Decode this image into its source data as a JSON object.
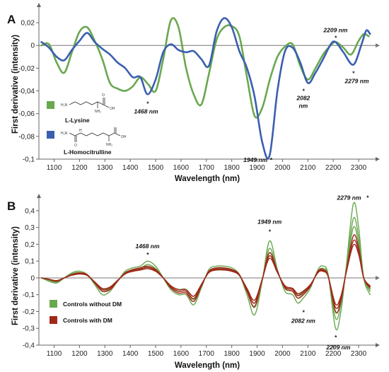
{
  "chart_data": [
    {
      "panel_label": "A",
      "type": "line",
      "xlabel": "Wavelength (nm)",
      "ylabel": "First derivative (intensity)",
      "xlim": [
        1040,
        2350
      ],
      "ylim": [
        -0.1,
        0.03
      ],
      "xticks": [
        1100,
        1200,
        1300,
        1400,
        1500,
        1600,
        1700,
        1800,
        1900,
        2000,
        2100,
        2200,
        2300
      ],
      "yticks": [
        -0.1,
        -0.08,
        -0.06,
        -0.04,
        -0.02,
        0,
        0.02
      ],
      "ytick_labels": [
        "-0,1",
        "-0,08",
        "-0,06",
        "-0,04",
        "-0,02",
        "0",
        "0,02"
      ],
      "series": [
        {
          "name": "L-Lysine",
          "color": "#6aa84f",
          "x": [
            1050,
            1080,
            1110,
            1140,
            1170,
            1200,
            1230,
            1260,
            1290,
            1320,
            1350,
            1380,
            1410,
            1440,
            1470,
            1500,
            1530,
            1560,
            1590,
            1620,
            1650,
            1680,
            1710,
            1740,
            1770,
            1800,
            1830,
            1860,
            1890,
            1920,
            1950,
            1980,
            2010,
            2040,
            2070,
            2100,
            2130,
            2160,
            2190,
            2210,
            2240,
            2270,
            2300,
            2320,
            2340
          ],
          "y": [
            0.0,
            0.001,
            -0.015,
            -0.024,
            -0.006,
            0.012,
            0.016,
            0.004,
            -0.012,
            -0.033,
            -0.038,
            -0.04,
            -0.036,
            -0.028,
            -0.034,
            -0.04,
            -0.012,
            0.022,
            0.016,
            -0.02,
            -0.043,
            -0.052,
            -0.025,
            0.005,
            0.016,
            0.017,
            0.008,
            -0.028,
            -0.062,
            -0.055,
            -0.03,
            -0.01,
            -0.001,
            0.001,
            -0.018,
            -0.03,
            -0.02,
            -0.008,
            0.0,
            0.003,
            -0.002,
            -0.008,
            0.004,
            0.01,
            0.008
          ]
        },
        {
          "name": "L-Homocitrulline",
          "color": "#3a5fb0",
          "x": [
            1050,
            1080,
            1110,
            1140,
            1170,
            1200,
            1230,
            1260,
            1290,
            1320,
            1350,
            1380,
            1410,
            1440,
            1468,
            1500,
            1530,
            1560,
            1590,
            1620,
            1650,
            1680,
            1710,
            1740,
            1770,
            1800,
            1830,
            1860,
            1890,
            1920,
            1949,
            1980,
            2010,
            2040,
            2070,
            2100,
            2130,
            2160,
            2190,
            2209,
            2240,
            2279,
            2310,
            2330,
            2345
          ],
          "y": [
            0.003,
            -0.002,
            -0.01,
            -0.013,
            -0.004,
            0.004,
            0.011,
            0.003,
            -0.003,
            -0.008,
            -0.015,
            -0.02,
            -0.028,
            -0.028,
            -0.043,
            -0.03,
            -0.006,
            0.001,
            -0.004,
            -0.006,
            -0.005,
            -0.012,
            -0.018,
            0.012,
            0.024,
            0.016,
            -0.005,
            -0.02,
            -0.045,
            -0.085,
            -0.097,
            -0.04,
            -0.005,
            -0.002,
            -0.015,
            -0.033,
            -0.024,
            -0.012,
            0.001,
            0.003,
            -0.006,
            -0.017,
            0.0,
            0.013,
            0.01
          ]
        }
      ],
      "annotations": [
        {
          "text": "1468 nm",
          "x": 1468,
          "y": -0.043
        },
        {
          "text": "1949 nm",
          "x": 1949,
          "y": -0.097
        },
        {
          "text": "2082 nm",
          "x": 2082,
          "y": -0.033
        },
        {
          "text": "2209 nm",
          "x": 2209,
          "y": 0.003
        },
        {
          "text": "2279 nm",
          "x": 2279,
          "y": -0.017
        }
      ]
    },
    {
      "panel_label": "B",
      "type": "line",
      "xlabel": "Wavelength (nm)",
      "ylabel": "First derivative (intensity)",
      "xlim": [
        1040,
        2350
      ],
      "ylim": [
        -0.4,
        0.45
      ],
      "xticks": [
        1100,
        1200,
        1300,
        1400,
        1500,
        1600,
        1700,
        1800,
        1900,
        2000,
        2100,
        2200,
        2300
      ],
      "yticks": [
        -0.4,
        -0.3,
        -0.2,
        -0.1,
        0,
        0.1,
        0.2,
        0.3,
        0.4
      ],
      "ytick_labels": [
        "-0,4",
        "-0,3",
        "-0,2",
        "-0,1",
        "0",
        "0,1",
        "0,2",
        "0,3",
        "0,4"
      ],
      "x": [
        1050,
        1080,
        1110,
        1140,
        1170,
        1200,
        1230,
        1260,
        1290,
        1320,
        1350,
        1380,
        1410,
        1440,
        1468,
        1500,
        1530,
        1560,
        1590,
        1620,
        1650,
        1680,
        1710,
        1740,
        1770,
        1800,
        1830,
        1860,
        1890,
        1920,
        1949,
        1980,
        2010,
        2040,
        2060,
        2082,
        2110,
        2140,
        2160,
        2180,
        2209,
        2230,
        2250,
        2279,
        2300,
        2320,
        2345
      ],
      "series": [
        {
          "name": "Controls without DM",
          "color": "#6aa84f",
          "y": [
            0.0,
            -0.02,
            -0.03,
            0.0,
            0.03,
            0.04,
            0.02,
            -0.04,
            -0.1,
            -0.08,
            -0.02,
            0.04,
            0.06,
            0.07,
            0.1,
            0.07,
            0.0,
            -0.07,
            -0.1,
            -0.1,
            -0.16,
            -0.06,
            0.05,
            0.07,
            0.07,
            0.06,
            0.02,
            -0.1,
            -0.22,
            -0.02,
            0.22,
            0.05,
            -0.08,
            -0.1,
            -0.15,
            -0.12,
            -0.06,
            0.05,
            0.07,
            0.02,
            -0.3,
            -0.2,
            0.05,
            0.44,
            0.3,
            0.0,
            -0.1
          ]
        },
        {
          "name": "Controls with DM",
          "color": "#a0281a",
          "y": [
            0.0,
            -0.01,
            -0.02,
            0.0,
            0.02,
            0.03,
            0.02,
            -0.03,
            -0.08,
            -0.07,
            -0.02,
            0.03,
            0.05,
            0.06,
            0.07,
            0.05,
            0.0,
            -0.06,
            -0.09,
            -0.09,
            -0.14,
            -0.05,
            0.04,
            0.06,
            0.06,
            0.05,
            0.02,
            -0.08,
            -0.17,
            -0.01,
            0.15,
            0.04,
            -0.06,
            -0.08,
            -0.12,
            -0.1,
            -0.05,
            0.04,
            0.05,
            0.01,
            -0.2,
            -0.14,
            0.03,
            0.25,
            0.18,
            0.0,
            -0.06
          ]
        }
      ],
      "annotations": [
        {
          "text": "1468 nm",
          "x": 1468,
          "y": 0.1
        },
        {
          "text": "1949 nm",
          "x": 1949,
          "y": 0.22
        },
        {
          "text": "2082 nm",
          "x": 2082,
          "y": -0.15
        },
        {
          "text": "2209 nm",
          "x": 2209,
          "y": -0.3
        },
        {
          "text": "2279 nm",
          "x": 2279,
          "y": 0.44
        }
      ]
    }
  ],
  "structure_labels": {
    "lysine_nh2": "H₂N",
    "lysine_oh": "OH",
    "lysine_o": "O",
    "lysine_nh2b": "NH₂",
    "homocit_nh2": "H₂N",
    "homocit_o": "O",
    "homocit_oh": "OH",
    "homocit_nh2b": "NH₂",
    "homocit_h": "H"
  }
}
